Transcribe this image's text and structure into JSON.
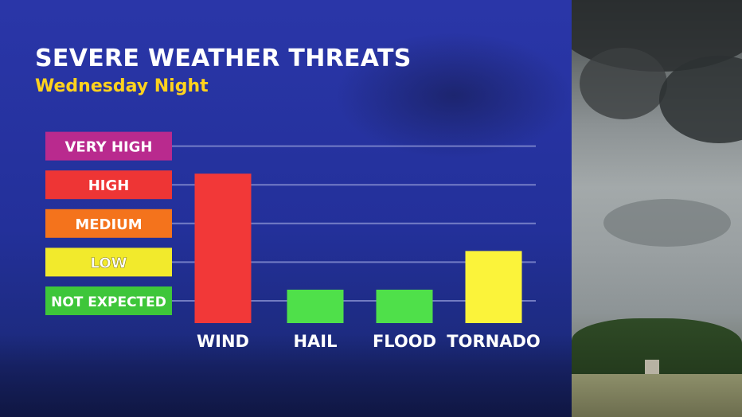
{
  "title": "SEVERE WEATHER THREATS",
  "subtitle": "Wednesday Night",
  "colors": {
    "panel": "#2a36a8",
    "title": "#ffffff",
    "subtitle": "#ffd21e",
    "gridline": "#8f97d6"
  },
  "chart_data": {
    "type": "bar",
    "title": "SEVERE WEATHER THREATS",
    "subtitle": "Wednesday Night",
    "levels": [
      {
        "label": "NOT EXPECTED",
        "color": "#3ec63a"
      },
      {
        "label": "LOW",
        "color": "#f2ea2c"
      },
      {
        "label": "MEDIUM",
        "color": "#f4731c"
      },
      {
        "label": "HIGH",
        "color": "#ee3535"
      },
      {
        "label": "VERY HIGH",
        "color": "#b92a8e"
      }
    ],
    "categories": [
      "WIND",
      "HAIL",
      "FLOOD",
      "TORNADO"
    ],
    "values": [
      3,
      0,
      0,
      1
    ],
    "bar_colors": [
      "#f23838",
      "#4fe04a",
      "#4fe04a",
      "#fbf33a"
    ],
    "ylim": [
      0,
      4
    ],
    "grid": true,
    "legend": "left"
  }
}
